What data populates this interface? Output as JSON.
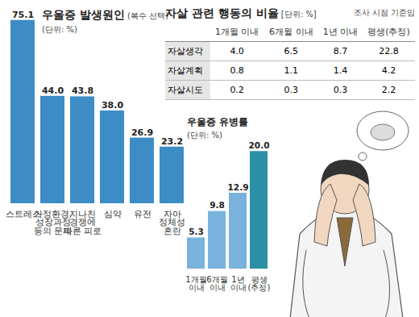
{
  "chart_data": [
    {
      "type": "bar",
      "title": "우울증 발생원인",
      "subtitle": "(복수 선택)",
      "unit": "(단위: %)",
      "categories": [
        "스트레스",
        "가정환경,\n성장과정\n등의 문제",
        "지나친\n경쟁에\n따른 피로",
        "심약",
        "유전",
        "자아\n정체성\n혼란"
      ],
      "values": [
        75.1,
        44.0,
        43.8,
        38.0,
        26.9,
        23.2
      ],
      "value_labels": [
        "75.1",
        "44.0",
        "43.8",
        "38.0",
        "26.9",
        "23.2"
      ],
      "color": "#3d8cc6",
      "ylim": [
        0,
        76
      ],
      "yticks": [],
      "grid": false,
      "data_labels": true,
      "tick_labels": "x"
    },
    {
      "type": "table",
      "title": "자살 관련 행동의 비율",
      "unit": "[단위: %]",
      "note": "조사 시점 기준임",
      "columns": [
        "1개월 이내",
        "6개월 이내",
        "1년 이내",
        "평생(추정)"
      ],
      "rows": [
        {
          "label": "자살생각",
          "cells": [
            "4.0",
            "6.5",
            "8.7",
            "22.8"
          ]
        },
        {
          "label": "자살계획",
          "cells": [
            "0.8",
            "1.1",
            "1.4",
            "4.2"
          ]
        },
        {
          "label": "자살시도",
          "cells": [
            "0.2",
            "0.3",
            "0.3",
            "2.2"
          ]
        }
      ]
    },
    {
      "type": "bar",
      "title": "우울증 유병률",
      "unit": "(단위: %)",
      "categories": [
        "1개월\n이내",
        "6개월\n이내",
        "1년\n이내",
        "평생\n(추정)"
      ],
      "values": [
        5.3,
        9.8,
        12.9,
        20.0
      ],
      "value_labels": [
        "5.3",
        "9.8",
        "12.9",
        "20.0"
      ],
      "colors": [
        "#79b2dc",
        "#79b2dc",
        "#79b2dc",
        "#2b8fa6"
      ],
      "ylim": [
        0,
        21
      ],
      "yticks": [],
      "grid": false,
      "data_labels": true,
      "tick_labels": "x"
    }
  ]
}
